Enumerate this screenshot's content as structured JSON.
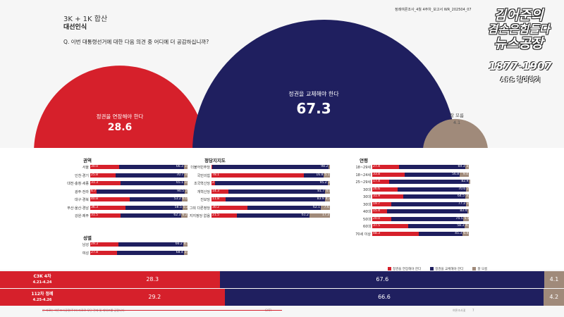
{
  "header": {
    "subtitle": "3K + 1K 합산",
    "title": "대선인식",
    "question": "Q. 이번 대통령선거에 대한 다음 의견 중 어디에 더 공감하십니까?",
    "doc_ref": "정례여론조사_4월 4주차_보고서  WR_202504_07"
  },
  "brand": {
    "line1": "김어준의",
    "line2": "겸손은힘들다",
    "line3": "뉴스공장",
    "phone": "1877-1907",
    "ars": "ARS 참여하기"
  },
  "colors": {
    "red": "#d6202b",
    "navy": "#1f1f5f",
    "gray": "#a08a7a"
  },
  "chart_data": [
    {
      "type": "pie",
      "categories": [
        "정권을 연장해야 한다",
        "정권을 교체해야 한다",
        "잘 모름"
      ],
      "values": [
        28.6,
        67.3,
        4.1
      ]
    },
    {
      "type": "bar",
      "title": "권역",
      "categories": [
        "서울",
        "인천·경기",
        "대전·충청·세종",
        "광주·전라",
        "대구·경북",
        "부산·울산·경남",
        "강원·제주"
      ],
      "series": [
        {
          "name": "정권을 연장해야 한다",
          "values": [
            30.0,
            25.8,
            31.3,
            6.7,
            40.8,
            36.3,
            31.5
          ]
        },
        {
          "name": "정권을 교체해야 한다",
          "values": [
            66.3,
            70.7,
            65.1,
            90.5,
            53.2,
            58.5,
            62.3
          ]
        },
        {
          "name": "잘 모름",
          "values": [
            3.7,
            3.5,
            3.6,
            2.8,
            6.0,
            5.2,
            6.2
          ]
        }
      ]
    },
    {
      "type": "bar",
      "title": "성별",
      "categories": [
        "남성",
        "여성"
      ],
      "series": [
        {
          "name": "정권을 연장해야 한다",
          "values": [
            29.3,
            27.8
          ]
        },
        {
          "name": "정권을 교체해야 한다",
          "values": [
            66.2,
            68.4
          ]
        },
        {
          "name": "잘 모름",
          "values": [
            4.5,
            3.8
          ]
        }
      ]
    },
    {
      "type": "bar",
      "title": "정당지지도",
      "categories": [
        "더불어민주당",
        "국민의힘",
        "조국혁신당",
        "개혁신당",
        "진보당",
        "그외 다른정당",
        "지지정당 없음"
      ],
      "series": [
        {
          "name": "정권을 연장해야 한다",
          "values": [
            0.8,
            78.1,
            2.8,
            14.3,
            11.8,
            30.2,
            21.5
          ]
        },
        {
          "name": "정권을 교체해야 한다",
          "values": [
            98.2,
            16.8,
            95.2,
            81.7,
            83.9,
            62.1,
            61.2
          ]
        },
        {
          "name": "잘 모름",
          "values": [
            1.0,
            5.1,
            2.0,
            4.0,
            4.3,
            7.6,
            17.3
          ]
        }
      ]
    },
    {
      "type": "bar",
      "title": "연령",
      "categories": [
        "18~29세",
        "18~24세",
        "25~29세",
        "30대",
        "30대",
        "30대",
        "40대",
        "50대",
        "60대",
        "70세 이상"
      ],
      "series": [
        {
          "name": "정권을 연장해야 한다",
          "values": [
            27.4,
            33.8,
            17.4,
            26.6,
            31.9,
            19.7,
            15.4,
            20.0,
            37.5,
            48.3
          ]
        },
        {
          "name": "정권을 교체해야 한다",
          "values": [
            69.3,
            56.8,
            82.9,
            70.6,
            64.5,
            77.3,
            83.4,
            74.5,
            58.3,
            45.3
          ]
        },
        {
          "name": "잘 모름",
          "values": [
            3.3,
            9.4,
            0,
            2.8,
            3.6,
            3.0,
            1.2,
            5.5,
            4.2,
            6.4
          ]
        }
      ]
    },
    {
      "type": "bar",
      "title": "",
      "categories": [
        "C3K 4차",
        "112차 정례"
      ],
      "category_dates": [
        "4.21-4.24",
        "4.25-4.26"
      ],
      "series": [
        {
          "name": "정권을 연장해야 한다",
          "values": [
            28.3,
            29.2
          ]
        },
        {
          "name": "정권을 교체해야 한다",
          "values": [
            67.6,
            66.6
          ]
        },
        {
          "name": "잘 모름",
          "values": [
            4.1,
            4.2
          ]
        }
      ]
    }
  ],
  "legend": [
    "정권을 연장해야 한다",
    "정권을 교체해야 한다",
    "잘 모름"
  ],
  "footer": {
    "left": "본 자료는 여론조사공정(주)의 자료로 무단 전재 및 재배포를 금합니다.",
    "center": "CATI",
    "right": "여론조사꽃",
    "page": "7"
  }
}
